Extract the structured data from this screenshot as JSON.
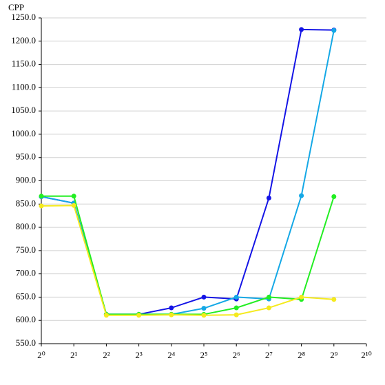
{
  "chart_data": {
    "type": "line",
    "ylabel": "CPP",
    "x": [
      1,
      2,
      4,
      8,
      16,
      32,
      64,
      128,
      256,
      512
    ],
    "xlim": [
      1,
      1024
    ],
    "xscale": "log2",
    "xticks": [
      {
        "value": 1,
        "label": "2⁰"
      },
      {
        "value": 2,
        "label": "2¹"
      },
      {
        "value": 4,
        "label": "2²"
      },
      {
        "value": 8,
        "label": "2³"
      },
      {
        "value": 16,
        "label": "2⁴"
      },
      {
        "value": 32,
        "label": "2⁵"
      },
      {
        "value": 64,
        "label": "2⁶"
      },
      {
        "value": 128,
        "label": "2⁷"
      },
      {
        "value": 256,
        "label": "2⁸"
      },
      {
        "value": 512,
        "label": "2⁹"
      },
      {
        "value": 1024,
        "label": "2¹⁰"
      }
    ],
    "ylim": [
      550,
      1250
    ],
    "yticks": [
      {
        "value": 550,
        "label": "550.0"
      },
      {
        "value": 600,
        "label": "600.0"
      },
      {
        "value": 650,
        "label": "650.0"
      },
      {
        "value": 700,
        "label": "700.0"
      },
      {
        "value": 750,
        "label": "750.0"
      },
      {
        "value": 800,
        "label": "800.0"
      },
      {
        "value": 850,
        "label": "850.0"
      },
      {
        "value": 900,
        "label": "900.0"
      },
      {
        "value": 950,
        "label": "950.0"
      },
      {
        "value": 1000,
        "label": "1000.0"
      },
      {
        "value": 1050,
        "label": "1050.0"
      },
      {
        "value": 1100,
        "label": "1100.0"
      },
      {
        "value": 1150,
        "label": "1150.0"
      },
      {
        "value": 1200,
        "label": "1200.0"
      },
      {
        "value": 1250,
        "label": "1250.0"
      }
    ],
    "grid": true,
    "series": [
      {
        "color": "#1414e6",
        "values": [
          866,
          852,
          613,
          613,
          627,
          650,
          646,
          863,
          1225,
          1224
        ]
      },
      {
        "color": "#14a8e6",
        "values": [
          866,
          852,
          613,
          613,
          613,
          626,
          650,
          646,
          868,
          1223
        ]
      },
      {
        "color": "#22ee22",
        "values": [
          867,
          867,
          613,
          613,
          613,
          613,
          627,
          650,
          645,
          866
        ]
      },
      {
        "color": "#f5ea1e",
        "values": [
          846,
          847,
          611,
          611,
          612,
          611,
          612,
          627,
          650,
          645
        ]
      }
    ]
  }
}
